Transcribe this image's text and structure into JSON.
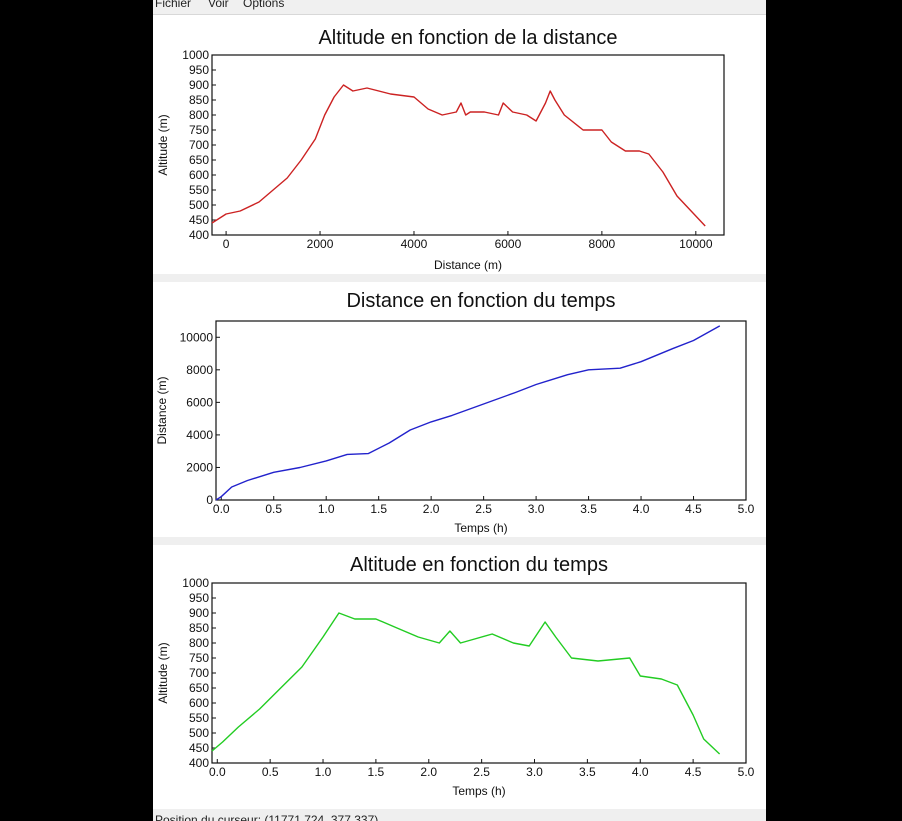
{
  "menu": {
    "fichier": "Fichier",
    "voir": "Voir",
    "options": "Options"
  },
  "status": {
    "text": "Position du curseur: (11771.724, 377.337)"
  },
  "chart_data": [
    {
      "type": "line",
      "title": "Altitude en fonction de la distance",
      "xlabel": "Distance (m)",
      "ylabel": "Altitude (m)",
      "xlim": [
        -300,
        10600
      ],
      "ylim": [
        400,
        1000
      ],
      "xticks": [
        0,
        2000,
        4000,
        6000,
        8000,
        10000
      ],
      "xtick_labels": [
        "0",
        "2000",
        "4000",
        "6000",
        "8000",
        "10000"
      ],
      "yticks": [
        400,
        450,
        500,
        550,
        600,
        650,
        700,
        750,
        800,
        850,
        900,
        950,
        1000
      ],
      "ytick_labels": [
        "400",
        "450",
        "500",
        "550",
        "600",
        "650",
        "700",
        "750",
        "800",
        "850",
        "900",
        "950",
        "1000"
      ],
      "color": "#cc2222",
      "x": [
        -300,
        0,
        300,
        700,
        1000,
        1300,
        1600,
        1900,
        2100,
        2300,
        2500,
        2700,
        3000,
        3500,
        4000,
        4300,
        4600,
        4900,
        5000,
        5100,
        5200,
        5500,
        5800,
        5900,
        6100,
        6400,
        6600,
        6800,
        6900,
        7000,
        7200,
        7600,
        8000,
        8200,
        8400,
        8500,
        8800,
        9000,
        9300,
        9600,
        9900,
        10200
      ],
      "y": [
        440,
        470,
        480,
        510,
        550,
        590,
        650,
        720,
        800,
        860,
        900,
        880,
        890,
        870,
        860,
        820,
        800,
        810,
        840,
        800,
        810,
        810,
        800,
        840,
        810,
        800,
        780,
        840,
        880,
        850,
        800,
        750,
        750,
        710,
        690,
        680,
        680,
        670,
        610,
        530,
        480,
        430
      ]
    },
    {
      "type": "line",
      "title": "Distance en fonction du temps",
      "xlabel": "Temps (h)",
      "ylabel": "Distance (m)",
      "xlim": [
        -0.05,
        5.0
      ],
      "ylim": [
        0,
        11000
      ],
      "xticks": [
        0,
        0.5,
        1.0,
        1.5,
        2.0,
        2.5,
        3.0,
        3.5,
        4.0,
        4.5,
        5.0
      ],
      "xtick_labels": [
        "0.0",
        "0.5",
        "1.0",
        "1.5",
        "2.0",
        "2.5",
        "3.0",
        "3.5",
        "4.0",
        "4.5",
        "5.0"
      ],
      "yticks": [
        0,
        2000,
        4000,
        6000,
        8000,
        10000
      ],
      "ytick_labels": [
        "0",
        "2000",
        "4000",
        "6000",
        "8000",
        "10000"
      ],
      "color": "#2222cc",
      "x": [
        -0.05,
        0.0,
        0.1,
        0.25,
        0.5,
        0.75,
        1.0,
        1.2,
        1.4,
        1.6,
        1.8,
        2.0,
        2.2,
        2.5,
        2.8,
        3.0,
        3.3,
        3.5,
        3.8,
        4.0,
        4.3,
        4.5,
        4.75
      ],
      "y": [
        0,
        200,
        800,
        1200,
        1700,
        2000,
        2400,
        2800,
        2850,
        3500,
        4300,
        4800,
        5200,
        5900,
        6600,
        7100,
        7700,
        8000,
        8100,
        8500,
        9300,
        9800,
        10700
      ]
    },
    {
      "type": "line",
      "title": "Altitude en fonction du temps",
      "xlabel": "Temps (h)",
      "ylabel": "Altitude (m)",
      "xlim": [
        -0.05,
        5.0
      ],
      "ylim": [
        400,
        1000
      ],
      "xticks": [
        0,
        0.5,
        1.0,
        1.5,
        2.0,
        2.5,
        3.0,
        3.5,
        4.0,
        4.5,
        5.0
      ],
      "xtick_labels": [
        "0.0",
        "0.5",
        "1.0",
        "1.5",
        "2.0",
        "2.5",
        "3.0",
        "3.5",
        "4.0",
        "4.5",
        "5.0"
      ],
      "yticks": [
        400,
        450,
        500,
        550,
        600,
        650,
        700,
        750,
        800,
        850,
        900,
        950,
        1000
      ],
      "ytick_labels": [
        "400",
        "450",
        "500",
        "550",
        "600",
        "650",
        "700",
        "750",
        "800",
        "850",
        "900",
        "950",
        "1000"
      ],
      "color": "#22cc22",
      "x": [
        -0.05,
        0.05,
        0.2,
        0.4,
        0.6,
        0.8,
        1.0,
        1.15,
        1.3,
        1.5,
        1.7,
        1.9,
        2.1,
        2.2,
        2.3,
        2.4,
        2.6,
        2.8,
        2.95,
        3.1,
        3.2,
        3.35,
        3.6,
        3.9,
        4.0,
        4.2,
        4.35,
        4.5,
        4.6,
        4.75
      ],
      "y": [
        440,
        470,
        520,
        580,
        650,
        720,
        820,
        900,
        880,
        880,
        850,
        820,
        800,
        840,
        800,
        810,
        830,
        800,
        790,
        870,
        820,
        750,
        740,
        750,
        690,
        680,
        660,
        560,
        480,
        430
      ]
    }
  ]
}
